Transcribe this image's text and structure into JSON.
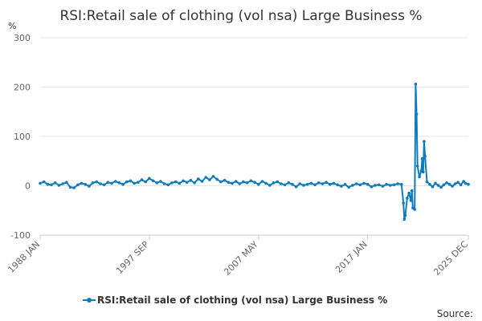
{
  "chart_data": {
    "type": "line",
    "title": "RSI:Retail sale of clothing (vol nsa) Large Business %",
    "unit_label": "%",
    "xlabel": "",
    "ylabel": "",
    "ylim": [
      -100,
      300
    ],
    "y_ticks": [
      -100,
      0,
      100,
      200,
      300
    ],
    "x_range": [
      "1988 JAN",
      "2025 DEC"
    ],
    "x_tick_labels": [
      "1988 JAN",
      "1997 SEP",
      "2007 MAY",
      "2017 JAN",
      "2025 DEC"
    ],
    "grid": true,
    "legend_position": "bottom",
    "source_label": "Source:",
    "color": "#0f7bbd",
    "series": [
      {
        "name": "RSI:Retail sale of clothing (vol nsa) Large Business %",
        "points": [
          [
            "1988 JAN",
            5
          ],
          [
            "1988 MAY",
            8
          ],
          [
            "1988 SEP",
            3
          ],
          [
            "1989 JAN",
            2
          ],
          [
            "1989 MAY",
            6
          ],
          [
            "1989 SEP",
            1
          ],
          [
            "1990 JAN",
            4
          ],
          [
            "1990 MAY",
            7
          ],
          [
            "1990 SEP",
            -3
          ],
          [
            "1991 JAN",
            -4
          ],
          [
            "1991 MAY",
            2
          ],
          [
            "1991 SEP",
            5
          ],
          [
            "1992 JAN",
            3
          ],
          [
            "1992 MAY",
            -1
          ],
          [
            "1992 SEP",
            6
          ],
          [
            "1993 JAN",
            8
          ],
          [
            "1993 MAY",
            4
          ],
          [
            "1993 SEP",
            2
          ],
          [
            "1994 JAN",
            7
          ],
          [
            "1994 MAY",
            5
          ],
          [
            "1994 SEP",
            9
          ],
          [
            "1995 JAN",
            6
          ],
          [
            "1995 MAY",
            3
          ],
          [
            "1995 SEP",
            8
          ],
          [
            "1996 JAN",
            10
          ],
          [
            "1996 MAY",
            5
          ],
          [
            "1996 SEP",
            7
          ],
          [
            "1997 JAN",
            12
          ],
          [
            "1997 MAY",
            8
          ],
          [
            "1997 SEP",
            15
          ],
          [
            "1998 JAN",
            10
          ],
          [
            "1998 MAY",
            6
          ],
          [
            "1998 SEP",
            9
          ],
          [
            "1999 JAN",
            4
          ],
          [
            "1999 MAY",
            2
          ],
          [
            "1999 SEP",
            6
          ],
          [
            "2000 JAN",
            8
          ],
          [
            "2000 MAY",
            5
          ],
          [
            "2000 SEP",
            10
          ],
          [
            "2001 JAN",
            7
          ],
          [
            "2001 MAY",
            11
          ],
          [
            "2001 SEP",
            6
          ],
          [
            "2002 JAN",
            14
          ],
          [
            "2002 MAY",
            9
          ],
          [
            "2002 SEP",
            17
          ],
          [
            "2003 JAN",
            12
          ],
          [
            "2003 MAY",
            19
          ],
          [
            "2003 SEP",
            13
          ],
          [
            "2004 JAN",
            8
          ],
          [
            "2004 MAY",
            11
          ],
          [
            "2004 SEP",
            7
          ],
          [
            "2005 JAN",
            5
          ],
          [
            "2005 MAY",
            9
          ],
          [
            "2005 SEP",
            4
          ],
          [
            "2006 JAN",
            8
          ],
          [
            "2006 MAY",
            6
          ],
          [
            "2006 SEP",
            10
          ],
          [
            "2007 JAN",
            7
          ],
          [
            "2007 MAY",
            3
          ],
          [
            "2007 SEP",
            9
          ],
          [
            "2008 JAN",
            5
          ],
          [
            "2008 MAY",
            1
          ],
          [
            "2008 SEP",
            6
          ],
          [
            "2009 JAN",
            8
          ],
          [
            "2009 MAY",
            4
          ],
          [
            "2009 SEP",
            2
          ],
          [
            "2010 JAN",
            6
          ],
          [
            "2010 MAY",
            3
          ],
          [
            "2010 SEP",
            -2
          ],
          [
            "2011 JAN",
            4
          ],
          [
            "2011 MAY",
            1
          ],
          [
            "2011 SEP",
            3
          ],
          [
            "2012 JAN",
            5
          ],
          [
            "2012 MAY",
            2
          ],
          [
            "2012 SEP",
            6
          ],
          [
            "2013 JAN",
            4
          ],
          [
            "2013 MAY",
            7
          ],
          [
            "2013 SEP",
            3
          ],
          [
            "2014 JAN",
            5
          ],
          [
            "2014 MAY",
            2
          ],
          [
            "2014 SEP",
            -1
          ],
          [
            "2015 JAN",
            3
          ],
          [
            "2015 MAY",
            -3
          ],
          [
            "2015 SEP",
            1
          ],
          [
            "2016 JAN",
            4
          ],
          [
            "2016 MAY",
            2
          ],
          [
            "2016 SEP",
            5
          ],
          [
            "2017 JAN",
            3
          ],
          [
            "2017 MAY",
            -2
          ],
          [
            "2017 SEP",
            1
          ],
          [
            "2018 JAN",
            2
          ],
          [
            "2018 MAY",
            -1
          ],
          [
            "2018 SEP",
            3
          ],
          [
            "2019 JAN",
            1
          ],
          [
            "2019 MAY",
            2
          ],
          [
            "2019 SEP",
            4
          ],
          [
            "2020 JAN",
            3
          ],
          [
            "2020 MAR",
            -35
          ],
          [
            "2020 APR",
            -68
          ],
          [
            "2020 MAY",
            -60
          ],
          [
            "2020 JUL",
            -25
          ],
          [
            "2020 SEP",
            -15
          ],
          [
            "2020 NOV",
            -30
          ],
          [
            "2020 DEC",
            -10
          ],
          [
            "2021 JAN",
            -45
          ],
          [
            "2021 MAR",
            -48
          ],
          [
            "2021 APR",
            206
          ],
          [
            "2021 MAY",
            145
          ],
          [
            "2021 JUN",
            40
          ],
          [
            "2021 AUG",
            18
          ],
          [
            "2021 OCT",
            30
          ],
          [
            "2021 NOV",
            55
          ],
          [
            "2021 DEC",
            28
          ],
          [
            "2022 JAN",
            90
          ],
          [
            "2022 FEB",
            60
          ],
          [
            "2022 APR",
            8
          ],
          [
            "2022 JUL",
            3
          ],
          [
            "2022 OCT",
            -2
          ],
          [
            "2023 JAN",
            5
          ],
          [
            "2023 APR",
            1
          ],
          [
            "2023 JUL",
            -3
          ],
          [
            "2023 OCT",
            2
          ],
          [
            "2024 JAN",
            6
          ],
          [
            "2024 APR",
            3
          ],
          [
            "2024 JUL",
            -1
          ],
          [
            "2024 OCT",
            4
          ],
          [
            "2025 JAN",
            7
          ],
          [
            "2025 APR",
            2
          ],
          [
            "2025 JUL",
            9
          ],
          [
            "2025 SEP",
            5
          ],
          [
            "2025 DEC",
            3
          ]
        ]
      }
    ]
  }
}
